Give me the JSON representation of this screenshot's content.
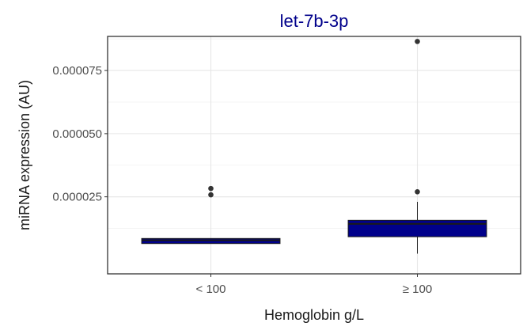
{
  "chart_data": {
    "type": "box",
    "title": "let-7b-3p",
    "xlabel": "Hemoglobin g/L",
    "ylabel": "miRNA expression (AU)",
    "categories": [
      "< 100",
      "≥ 100"
    ],
    "ylim": [
      -5.5e-06,
      8.85e-05
    ],
    "yticks": [
      2.5e-05,
      5e-05,
      7.5e-05
    ],
    "ytick_labels": [
      "0.000025",
      "0.000050",
      "0.000075"
    ],
    "grid": true,
    "boxes": [
      {
        "category": "< 100",
        "q1": 6.5e-06,
        "median": 7.8e-06,
        "q3": 8.5e-06,
        "whisker_low": 6.5e-06,
        "whisker_high": 8.5e-06,
        "outliers": [
          2.58e-05,
          2.83e-05
        ]
      },
      {
        "category": "≥ 100",
        "q1": 9.2e-06,
        "median": 1.43e-05,
        "q3": 1.57e-05,
        "whisker_low": 2.5e-06,
        "whisker_high": 2.3e-05,
        "outliers": [
          2.7e-05,
          8.65e-05
        ]
      }
    ],
    "colors": {
      "box_fill": "#00008b",
      "box_stroke": "#1a1a1a",
      "title": "#00008b",
      "panel_border": "#333333",
      "grid_major": "#e6e6e6",
      "grid_minor": "#f2f2f2",
      "point": "#333333"
    }
  }
}
